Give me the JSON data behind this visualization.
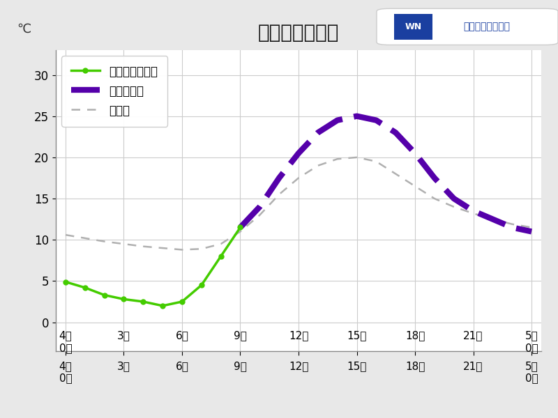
{
  "title": "高山の気温変化",
  "ylabel": "℃",
  "bg_color": "#e8e8e8",
  "plot_bg_color": "#ffffff",
  "x_ticks": [
    0,
    3,
    6,
    9,
    12,
    15,
    18,
    21,
    24
  ],
  "x_tick_labels_line1": [
    "4日",
    "",
    "",
    "",
    "",
    "",
    "",
    "",
    "5日"
  ],
  "x_tick_labels_line2": [
    "0時",
    "3時",
    "6時",
    "9時",
    "12時",
    "15時",
    "18時",
    "21時",
    "0時"
  ],
  "ylim": [
    -3.5,
    33
  ],
  "y_ticks": [
    0,
    5,
    10,
    15,
    20,
    25,
    30
  ],
  "green_x": [
    0,
    1,
    2,
    3,
    4,
    5,
    6,
    7,
    8,
    9
  ],
  "green_y": [
    4.9,
    4.2,
    3.3,
    2.8,
    2.5,
    2.0,
    2.5,
    4.5,
    8.0,
    11.5
  ],
  "purple_x": [
    9,
    10,
    11,
    12,
    13,
    14,
    15,
    16,
    17,
    18,
    19,
    20,
    21,
    22,
    23,
    24
  ],
  "purple_y": [
    11.5,
    14.0,
    17.5,
    20.5,
    23.0,
    24.5,
    25.0,
    24.5,
    23.0,
    20.5,
    17.5,
    15.0,
    13.5,
    12.5,
    11.5,
    11.0
  ],
  "normal_x": [
    0,
    1,
    2,
    3,
    4,
    5,
    6,
    7,
    8,
    9,
    10,
    11,
    12,
    13,
    14,
    15,
    16,
    17,
    18,
    19,
    20,
    21,
    22,
    23,
    24
  ],
  "normal_y": [
    10.6,
    10.2,
    9.8,
    9.5,
    9.2,
    9.0,
    8.8,
    8.9,
    9.5,
    11.0,
    13.0,
    15.5,
    17.5,
    19.0,
    19.8,
    20.0,
    19.5,
    18.0,
    16.5,
    15.0,
    14.0,
    13.2,
    12.5,
    11.9,
    11.5
  ],
  "green_color": "#44cc00",
  "purple_color": "#5500aa",
  "normal_color": "#b0b0b0",
  "legend_labels": [
    "これまでの経過",
    "今後の予報",
    "平年値"
  ],
  "wn_logo_text": "ウェザーニュース",
  "wn_logo_color": "#1a3fa0"
}
